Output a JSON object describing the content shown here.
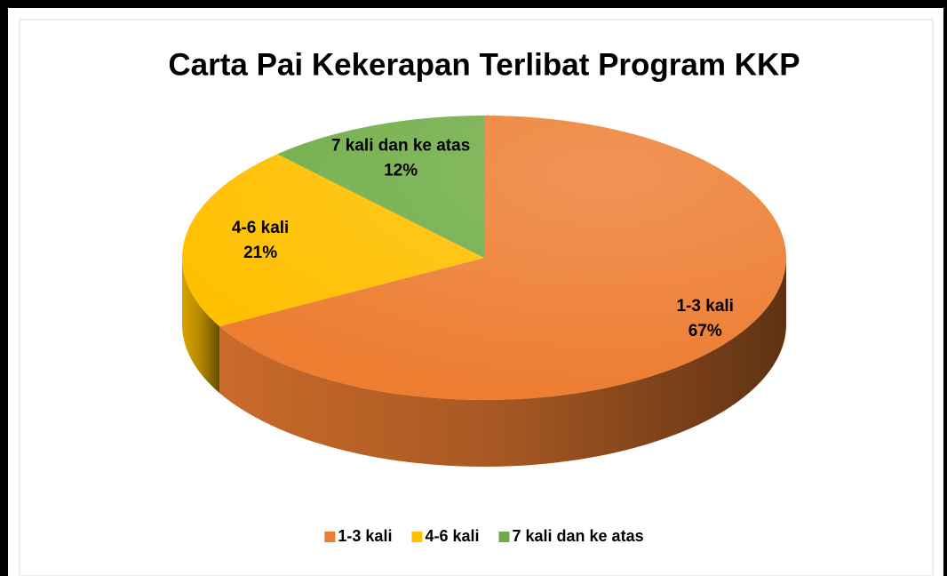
{
  "chart_data": {
    "type": "pie",
    "title": "Carta Pai Kekerapan Terlibat Program KKP",
    "categories": [
      "1-3 kali",
      "4-6 kali",
      "7 kali dan ke atas"
    ],
    "values": [
      67,
      21,
      12
    ],
    "value_labels": [
      "67%",
      "21%",
      "12%"
    ],
    "colors": [
      "#ed7d31",
      "#ffc000",
      "#70ad47"
    ],
    "legend": "bottom"
  }
}
